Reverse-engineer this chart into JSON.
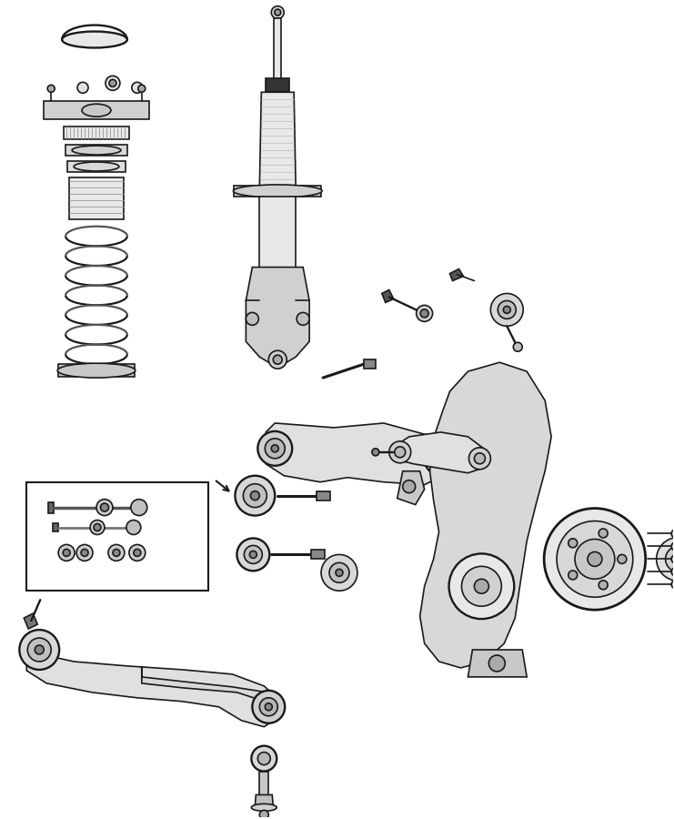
{
  "bg_color": "#ffffff",
  "line_color": "#1a1a1a",
  "line_width": 1.2,
  "fig_width": 7.41,
  "fig_height": 9.0
}
